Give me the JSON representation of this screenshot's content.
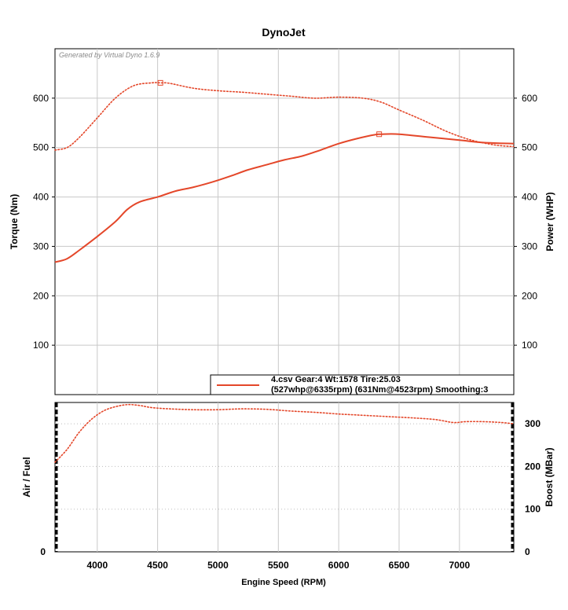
{
  "chart_data": [
    {
      "type": "line",
      "title": "DynoJet",
      "watermark": "Generated by Virtual Dyno 1.6.9",
      "xlabel": "Engine Speed (RPM)",
      "ylabel_left": "Torque (Nm)",
      "ylabel_right": "Power (WHP)",
      "xlim": [
        3650,
        7450
      ],
      "ylim": [
        0,
        700
      ],
      "yticks": [
        100,
        200,
        300,
        400,
        500,
        600
      ],
      "grid": true,
      "legend": {
        "position": "bottom-right",
        "line1": "4.csv Gear:4 Wt:1578 Tire:25.03",
        "line2": "(527whp@6335rpm) (631Nm@4523rpm) Smoothing:3"
      },
      "line_color": "#e4472a",
      "series": [
        {
          "axis": "power",
          "style": "solid",
          "peak": {
            "x": 6335,
            "y": 527
          },
          "x": [
            3650,
            3750,
            3850,
            4000,
            4150,
            4250,
            4350,
            4500,
            4650,
            4800,
            4950,
            5100,
            5250,
            5400,
            5550,
            5700,
            5850,
            6000,
            6150,
            6300,
            6350,
            6500,
            6750,
            7000,
            7200,
            7450
          ],
          "y": [
            268,
            275,
            292,
            320,
            350,
            375,
            390,
            400,
            412,
            420,
            430,
            442,
            455,
            465,
            475,
            483,
            495,
            508,
            518,
            526,
            527,
            527,
            521,
            515,
            510,
            508
          ]
        },
        {
          "axis": "torque",
          "style": "dotted",
          "peak": {
            "x": 4523,
            "y": 631
          },
          "x": [
            3650,
            3750,
            3850,
            4000,
            4150,
            4300,
            4450,
            4523,
            4600,
            4800,
            5000,
            5200,
            5400,
            5600,
            5800,
            6000,
            6200,
            6350,
            6500,
            6700,
            6900,
            7100,
            7300,
            7450
          ],
          "y": [
            495,
            500,
            520,
            560,
            600,
            625,
            631,
            631,
            630,
            620,
            615,
            612,
            608,
            604,
            600,
            602,
            600,
            592,
            576,
            555,
            532,
            515,
            505,
            502
          ]
        }
      ]
    },
    {
      "type": "line",
      "ylabel_left": "Air / Fuel",
      "ylabel_right": "Boost (MBar)",
      "xlabel": "Engine Speed (RPM)",
      "xlim": [
        3650,
        7450
      ],
      "xticks": [
        4000,
        4500,
        5000,
        5500,
        6000,
        6500,
        7000
      ],
      "ylim": [
        0,
        350
      ],
      "yticks_right": [
        0,
        100,
        200,
        300
      ],
      "yticks_left": [
        0
      ],
      "grid": true,
      "series": [
        {
          "axis": "boost",
          "style": "dotted",
          "x": [
            3650,
            3750,
            3850,
            3950,
            4050,
            4150,
            4250,
            4350,
            4450,
            4600,
            4800,
            5000,
            5200,
            5400,
            5600,
            5800,
            6000,
            6200,
            6400,
            6600,
            6800,
            6950,
            7050,
            7200,
            7350,
            7450
          ],
          "y": [
            210,
            240,
            280,
            310,
            330,
            340,
            345,
            343,
            338,
            335,
            333,
            333,
            335,
            334,
            330,
            327,
            323,
            320,
            317,
            314,
            310,
            303,
            305,
            305,
            303,
            300
          ]
        }
      ]
    }
  ]
}
